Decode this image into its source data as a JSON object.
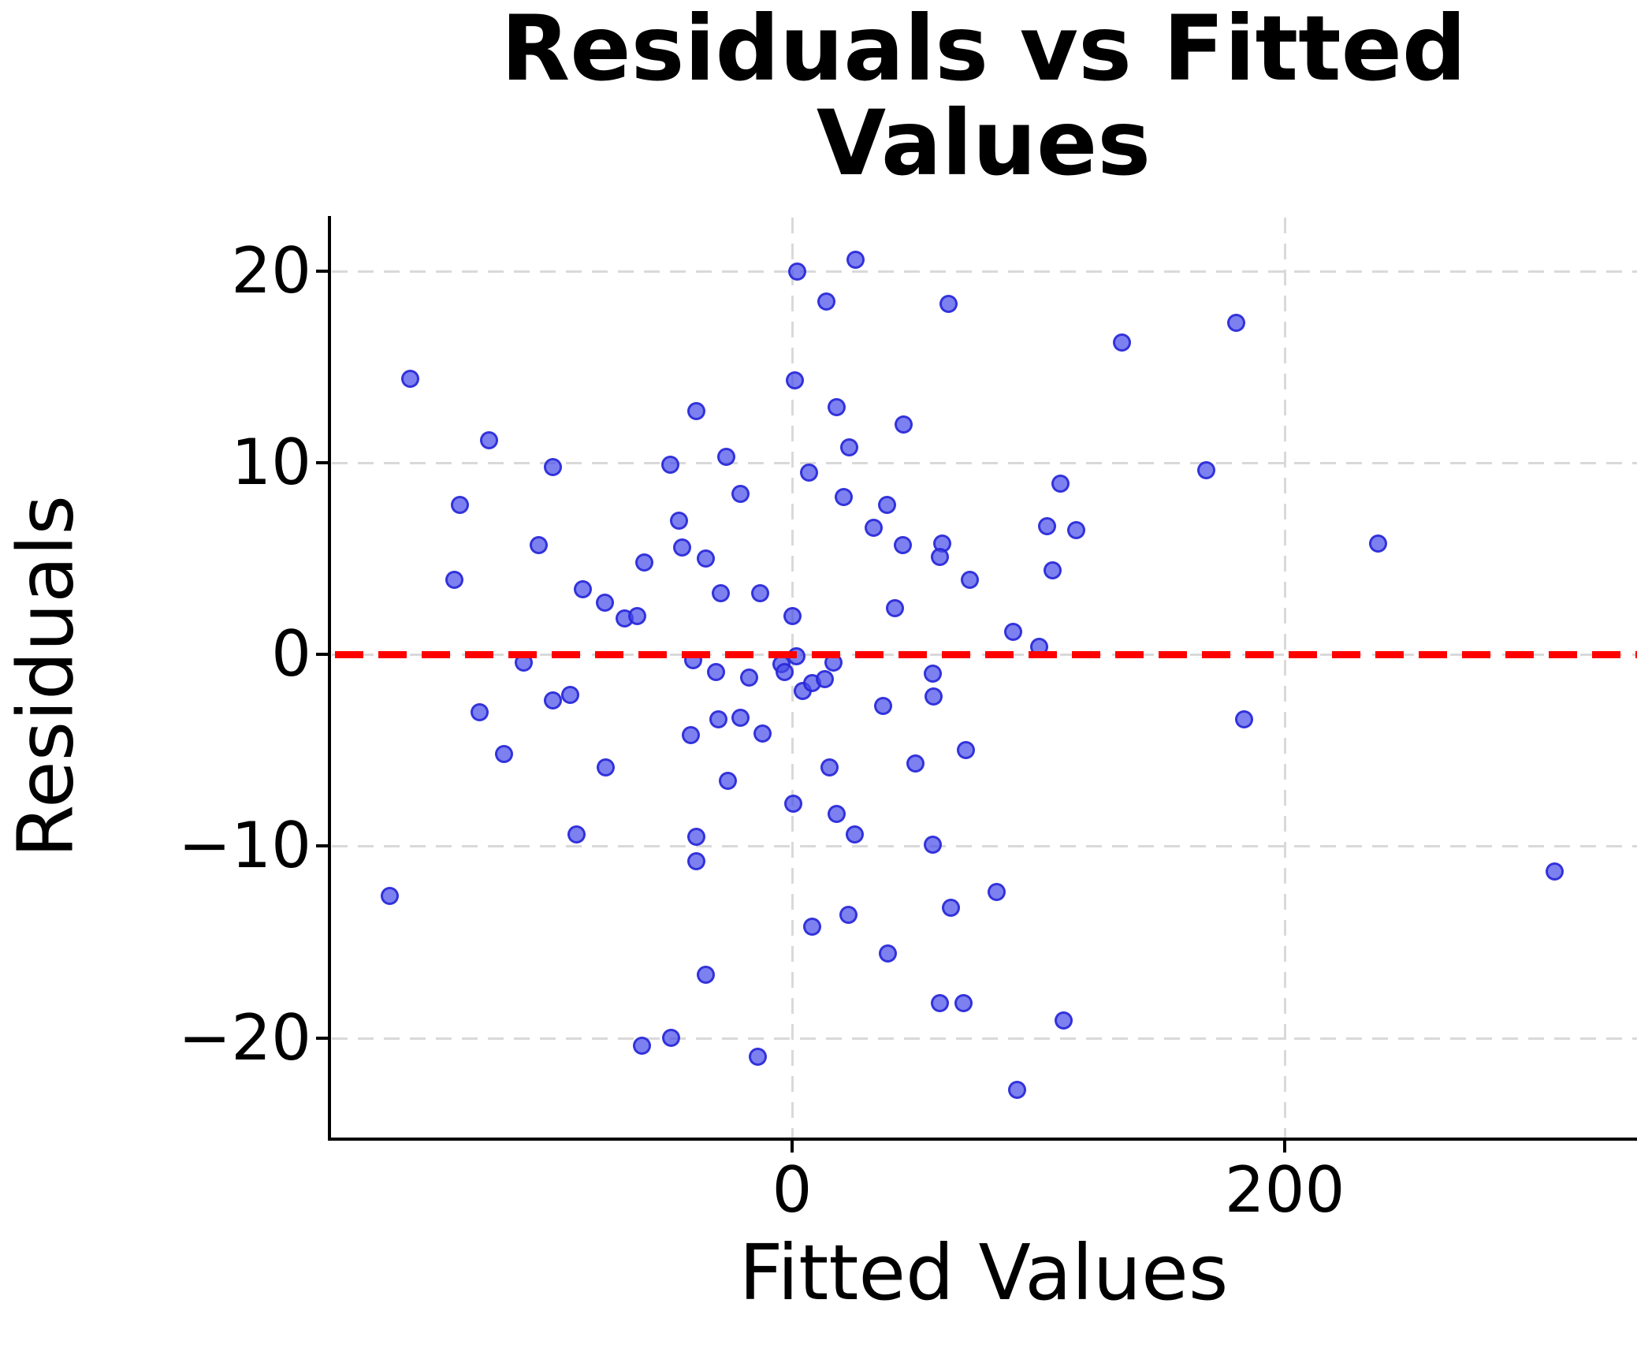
{
  "title_line1": "Residuals vs Fitted",
  "title_line2": "Values",
  "chart_data": {
    "type": "scatter",
    "title": "Residuals vs Fitted Values",
    "xlabel": "Fitted Values",
    "ylabel": "Residuals",
    "x_ticks": [
      0,
      200
    ],
    "x_tick_labels": [
      "0",
      "200"
    ],
    "y_ticks": [
      20,
      10,
      0,
      -10,
      -20
    ],
    "y_tick_labels": [
      "20",
      "10",
      "0",
      "−10",
      "−20"
    ],
    "xlim": [
      -187.5,
      343
    ],
    "ylim": [
      -25.2,
      22.8
    ],
    "grid": true,
    "legend": "none",
    "reference_line": {
      "y": 0,
      "style": "dashed",
      "color": "#ff0000"
    },
    "points": [
      [
        -155,
        14.4
      ],
      [
        -123,
        11.2
      ],
      [
        -135,
        7.8
      ],
      [
        -97,
        9.8
      ],
      [
        -49.3,
        9.9
      ],
      [
        -26.6,
        10.3
      ],
      [
        -39,
        12.7
      ],
      [
        -21,
        8.4
      ],
      [
        -103,
        5.7
      ],
      [
        -46,
        7
      ],
      [
        -44.5,
        5.6
      ],
      [
        -35,
        5
      ],
      [
        -60,
        4.8
      ],
      [
        -137,
        3.9
      ],
      [
        -85,
        3.4
      ],
      [
        -76,
        2.7
      ],
      [
        -68,
        1.9
      ],
      [
        -63,
        2
      ],
      [
        -28.8,
        3.2
      ],
      [
        -12.8,
        3.2
      ],
      [
        0.3,
        2
      ],
      [
        7,
        9.5
      ],
      [
        2,
        20
      ],
      [
        25.6,
        20.6
      ],
      [
        1,
        14.3
      ],
      [
        13.9,
        18.4
      ],
      [
        63.4,
        18.3
      ],
      [
        134,
        16.3
      ],
      [
        180.4,
        17.3
      ],
      [
        18.2,
        12.9
      ],
      [
        45.4,
        12
      ],
      [
        23.1,
        10.8
      ],
      [
        21,
        8.2
      ],
      [
        38.4,
        7.8
      ],
      [
        33,
        6.6
      ],
      [
        45.1,
        5.7
      ],
      [
        61,
        5.8
      ],
      [
        60.1,
        5.1
      ],
      [
        72,
        3.9
      ],
      [
        41.6,
        2.4
      ],
      [
        109.1,
        8.9
      ],
      [
        103.4,
        6.7
      ],
      [
        115.2,
        6.5
      ],
      [
        105.9,
        4.4
      ],
      [
        168,
        9.6
      ],
      [
        89.9,
        1.2
      ],
      [
        100.3,
        0.4
      ],
      [
        238,
        5.8
      ],
      [
        16.9,
        -0.4
      ],
      [
        -109,
        -0.4
      ],
      [
        -97,
        -2.4
      ],
      [
        -90,
        -2.1
      ],
      [
        -127,
        -3
      ],
      [
        -116.8,
        -5.2
      ],
      [
        -75.8,
        -5.9
      ],
      [
        -87.4,
        -9.4
      ],
      [
        -163.5,
        -12.6
      ],
      [
        -35,
        -16.7
      ],
      [
        -61,
        -20.4
      ],
      [
        -49,
        -20
      ],
      [
        -14,
        -21
      ],
      [
        -40,
        -0.3
      ],
      [
        -31,
        -0.9
      ],
      [
        -17.3,
        -1.2
      ],
      [
        -4.2,
        -0.5
      ],
      [
        -2.9,
        -0.9
      ],
      [
        1.9,
        -0.1
      ],
      [
        4.2,
        -1.9
      ],
      [
        8,
        -1.5
      ],
      [
        13.4,
        -1.3
      ],
      [
        -41,
        -4.2
      ],
      [
        -29.8,
        -3.4
      ],
      [
        -21,
        -3.3
      ],
      [
        -12,
        -4.1
      ],
      [
        -26,
        -6.6
      ],
      [
        -39,
        -9.5
      ],
      [
        -39,
        -10.8
      ],
      [
        0.6,
        -7.8
      ],
      [
        57,
        -1
      ],
      [
        57.3,
        -2.2
      ],
      [
        37,
        -2.7
      ],
      [
        183.5,
        -3.4
      ],
      [
        70.7,
        -5
      ],
      [
        50.2,
        -5.7
      ],
      [
        15.1,
        -5.9
      ],
      [
        18.1,
        -8.3
      ],
      [
        25.4,
        -9.4
      ],
      [
        57,
        -9.9
      ],
      [
        82.9,
        -12.4
      ],
      [
        64.5,
        -13.2
      ],
      [
        8.3,
        -14.2
      ],
      [
        22.9,
        -13.6
      ],
      [
        39,
        -15.6
      ],
      [
        60.1,
        -18.2
      ],
      [
        69.6,
        -18.2
      ],
      [
        110.1,
        -19.1
      ],
      [
        91.5,
        -22.7
      ],
      [
        309.7,
        -11.3
      ]
    ]
  },
  "colors": {
    "point_fill": "rgba(70,76,233,0.70)",
    "point_edge": "rgba(38,36,216,0.85)",
    "zero_line": "#ff0000",
    "grid": "#d9d9d9",
    "axis": "#000000",
    "text": "#000000"
  }
}
